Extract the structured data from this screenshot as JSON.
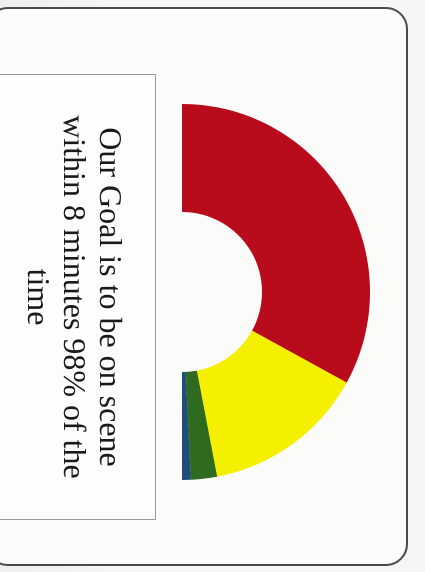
{
  "goal_text": "Our Goal is to be on scene within 8 minutes 98% of the time",
  "chart_data": {
    "type": "pie",
    "variant": "half-donut",
    "title": "",
    "slices": [
      {
        "name": "",
        "value": 1.5,
        "color": "#1f4e79"
      },
      {
        "name": "",
        "value": 4.5,
        "color": "#2e6b1f"
      },
      {
        "name": "",
        "value": 28,
        "color": "#f4f000"
      },
      {
        "name": "",
        "value": 66,
        "color": "#b80c1c"
      }
    ]
  }
}
